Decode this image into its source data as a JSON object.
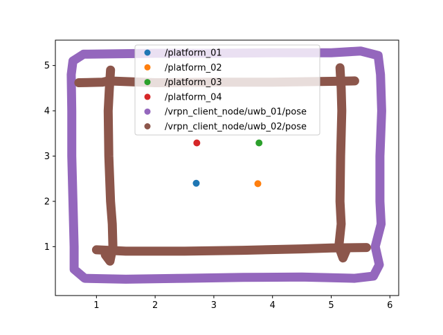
{
  "chart_data": {
    "type": "scatter",
    "title": "",
    "xlabel": "",
    "ylabel": "",
    "xlim": [
      0.3,
      6.15
    ],
    "ylim": [
      -0.08,
      5.56
    ],
    "xticks": [
      1,
      2,
      3,
      4,
      5,
      6
    ],
    "yticks": [
      1,
      2,
      3,
      4,
      5
    ],
    "grid": false,
    "legend_position": "upper center",
    "series": [
      {
        "name": "/platform_01",
        "color": "#1f77b4",
        "points": [
          [
            2.7,
            2.4
          ]
        ]
      },
      {
        "name": "/platform_02",
        "color": "#ff7f0e",
        "points": [
          [
            3.75,
            2.39
          ]
        ]
      },
      {
        "name": "/platform_03",
        "color": "#2ca02c",
        "points": [
          [
            3.77,
            3.29
          ]
        ]
      },
      {
        "name": "/platform_04",
        "color": "#d62728",
        "points": [
          [
            2.71,
            3.29
          ]
        ]
      },
      {
        "name": "/vrpn_client_node/uwb_01/pose",
        "color": "#9467bd",
        "path": [
          [
            0.78,
            5.25
          ],
          [
            2.0,
            5.27
          ],
          [
            3.0,
            5.27
          ],
          [
            4.0,
            5.28
          ],
          [
            5.0,
            5.28
          ],
          [
            5.5,
            5.32
          ],
          [
            5.8,
            5.22
          ],
          [
            5.84,
            4.8
          ],
          [
            5.86,
            4.0
          ],
          [
            5.83,
            3.0
          ],
          [
            5.83,
            2.0
          ],
          [
            5.85,
            1.5
          ],
          [
            5.75,
            1.0
          ],
          [
            5.82,
            0.6
          ],
          [
            5.72,
            0.35
          ],
          [
            5.4,
            0.3
          ],
          [
            4.5,
            0.33
          ],
          [
            3.5,
            0.32
          ],
          [
            2.5,
            0.3
          ],
          [
            1.5,
            0.28
          ],
          [
            0.8,
            0.3
          ],
          [
            0.62,
            0.5
          ],
          [
            0.62,
            1.0
          ],
          [
            0.6,
            2.0
          ],
          [
            0.58,
            3.0
          ],
          [
            0.58,
            4.0
          ],
          [
            0.57,
            4.8
          ],
          [
            0.6,
            5.1
          ],
          [
            0.78,
            5.25
          ]
        ]
      },
      {
        "name": "/vrpn_client_node/uwb_02/pose",
        "color": "#8c564b",
        "paths": [
          [
            [
              0.7,
              4.62
            ],
            [
              1.1,
              4.63
            ],
            [
              1.2,
              4.66
            ],
            [
              2.0,
              4.62
            ],
            [
              3.0,
              4.63
            ],
            [
              4.0,
              4.63
            ],
            [
              5.0,
              4.65
            ],
            [
              5.4,
              4.66
            ]
          ],
          [
            [
              1.0,
              0.93
            ],
            [
              1.5,
              0.9
            ],
            [
              2.5,
              0.9
            ],
            [
              3.5,
              0.92
            ],
            [
              4.5,
              0.95
            ],
            [
              5.0,
              0.97
            ],
            [
              5.6,
              0.98
            ]
          ],
          [
            [
              1.24,
              4.9
            ],
            [
              1.22,
              4.5
            ],
            [
              1.2,
              4.0
            ],
            [
              1.21,
              3.0
            ],
            [
              1.24,
              2.0
            ],
            [
              1.27,
              1.5
            ],
            [
              1.28,
              1.0
            ],
            [
              1.23,
              0.68
            ],
            [
              1.15,
              0.82
            ]
          ],
          [
            [
              5.15,
              4.95
            ],
            [
              5.17,
              4.5
            ],
            [
              5.18,
              4.0
            ],
            [
              5.16,
              3.0
            ],
            [
              5.15,
              2.0
            ],
            [
              5.17,
              1.5
            ],
            [
              5.13,
              1.0
            ],
            [
              5.2,
              0.75
            ],
            [
              5.25,
              0.9
            ]
          ]
        ]
      }
    ]
  }
}
